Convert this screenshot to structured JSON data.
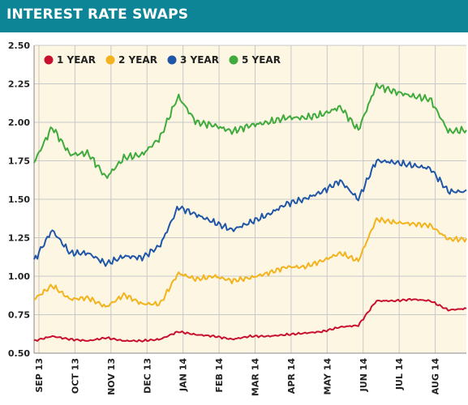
{
  "header": {
    "title": "INTEREST RATE SWAPS"
  },
  "colors": {
    "header": "#0d8596",
    "background": "#fdf6e3",
    "grid": "#c8c8c8"
  },
  "chart_data": {
    "type": "line",
    "title": "INTEREST RATE SWAPS",
    "xlabel": "",
    "ylabel": "",
    "ylim": [
      0.5,
      2.5
    ],
    "yticks": [
      "2.50",
      "2.25",
      "2.00",
      "1.75",
      "1.50",
      "1.25",
      "1.00",
      "0.75",
      "0.50"
    ],
    "ytick_values": [
      2.5,
      2.25,
      2.0,
      1.75,
      1.5,
      1.25,
      1.0,
      0.75,
      0.5
    ],
    "xticks": [
      "SEP 13",
      "OCT 13",
      "NOV 13",
      "DEC 13",
      "JAN 14",
      "FEB 14",
      "MAR 14",
      "APR 14",
      "MAY 14",
      "JUN 14",
      "JUL 14",
      "AUG 14"
    ],
    "x": [
      "Sep 13",
      "mid-Sep 13",
      "Oct 13",
      "mid-Oct 13",
      "Nov 13",
      "mid-Nov 13",
      "Dec 13",
      "late-Dec 13",
      "Jan 14",
      "mid-Jan 14",
      "Feb 14",
      "mid-Feb 14",
      "Mar 14",
      "mid-Mar 14",
      "Apr 14",
      "mid-Apr 14",
      "May 14",
      "mid-May 14",
      "Jun 14",
      "mid-Jun 14",
      "Jul 14",
      "mid-Jul 14",
      "Aug 14",
      "mid-Aug 14",
      "early-Sep 14"
    ],
    "grid": true,
    "legend": "top-left",
    "series": [
      {
        "name": "1 YEAR",
        "color": "#c8102e",
        "values": [
          0.58,
          0.61,
          0.59,
          0.58,
          0.6,
          0.58,
          0.58,
          0.59,
          0.64,
          0.62,
          0.61,
          0.59,
          0.61,
          0.61,
          0.62,
          0.63,
          0.64,
          0.67,
          0.68,
          0.84,
          0.84,
          0.85,
          0.84,
          0.78,
          0.79
        ]
      },
      {
        "name": "2 YEAR",
        "color": "#f2b31c",
        "values": [
          0.85,
          0.94,
          0.85,
          0.86,
          0.8,
          0.88,
          0.82,
          0.82,
          1.02,
          0.98,
          1.0,
          0.97,
          0.99,
          1.02,
          1.06,
          1.06,
          1.1,
          1.15,
          1.1,
          1.37,
          1.35,
          1.34,
          1.33,
          1.24,
          1.24
        ]
      },
      {
        "name": "3 YEAR",
        "color": "#1f56a8",
        "values": [
          1.1,
          1.3,
          1.15,
          1.15,
          1.08,
          1.13,
          1.12,
          1.2,
          1.45,
          1.4,
          1.35,
          1.3,
          1.35,
          1.4,
          1.47,
          1.5,
          1.55,
          1.62,
          1.5,
          1.75,
          1.74,
          1.72,
          1.7,
          1.55,
          1.55
        ]
      },
      {
        "name": "5 YEAR",
        "color": "#3fab3d",
        "values": [
          1.74,
          1.97,
          1.79,
          1.8,
          1.64,
          1.77,
          1.79,
          1.9,
          2.17,
          2.0,
          1.98,
          1.94,
          1.98,
          2.0,
          2.03,
          2.03,
          2.05,
          2.1,
          1.95,
          2.24,
          2.2,
          2.17,
          2.15,
          1.94,
          1.95
        ]
      }
    ]
  }
}
